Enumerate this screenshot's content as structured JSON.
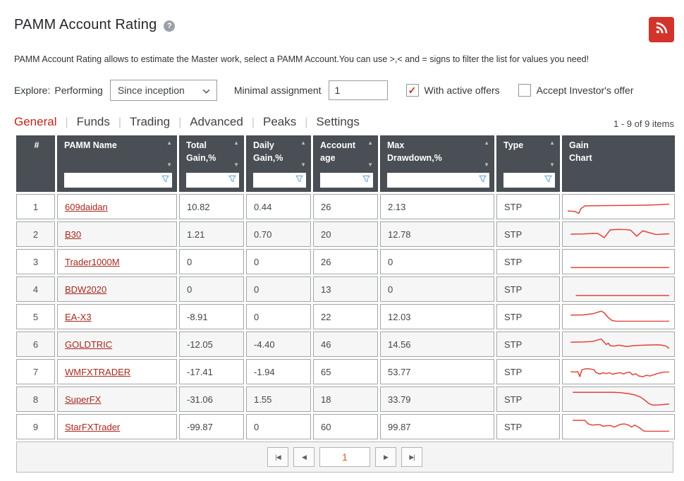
{
  "page": {
    "title": "PAMM Account Rating",
    "help_icon": "?",
    "description": "PAMM Account Rating allows to estimate the Master work, select a PAMM Account.You can use >,< and = signs to filter the list for values you need!",
    "items_count": "1 - 9 of 9 items"
  },
  "filters": {
    "explore_label": "Explore:",
    "explore_value": "Performing",
    "period_selected": "Since inception",
    "minimal_assignment_label": "Minimal assignment",
    "minimal_assignment_value": "1",
    "with_active_offers_label": "With active offers",
    "with_active_offers_checked": true,
    "accept_investors_offer_label": "Accept Investor's offer",
    "accept_investors_offer_checked": false
  },
  "tabs": [
    {
      "label": "General",
      "active": true
    },
    {
      "label": "Funds",
      "active": false
    },
    {
      "label": "Trading",
      "active": false
    },
    {
      "label": "Advanced",
      "active": false
    },
    {
      "label": "Peaks",
      "active": false
    },
    {
      "label": "Settings",
      "active": false
    }
  ],
  "table": {
    "columns": [
      {
        "label": "#",
        "sortable": false,
        "filterable": false
      },
      {
        "label": "PAMM Name",
        "sortable": true,
        "filterable": true
      },
      {
        "label": "Total\nGain,%",
        "sortable": true,
        "filterable": true
      },
      {
        "label": "Daily\nGain,%",
        "sortable": true,
        "filterable": true
      },
      {
        "label": "Account\nage",
        "sortable": true,
        "filterable": true
      },
      {
        "label": "Max\nDrawdown,%",
        "sortable": true,
        "filterable": true
      },
      {
        "label": "Type",
        "sortable": true,
        "filterable": true
      },
      {
        "label": "Gain\nChart",
        "sortable": false,
        "filterable": false
      }
    ],
    "rows": [
      {
        "num": "1",
        "name": "609daidan",
        "total_gain": "10.82",
        "daily_gain": "0.44",
        "account_age": "26",
        "max_drawdown": "2.13",
        "type": "STP",
        "spark": [
          [
            0,
            72
          ],
          [
            7,
            74
          ],
          [
            11,
            84
          ],
          [
            13,
            60
          ],
          [
            17,
            46
          ],
          [
            30,
            45
          ],
          [
            50,
            44
          ],
          [
            70,
            43
          ],
          [
            80,
            42
          ],
          [
            90,
            40
          ],
          [
            100,
            37
          ]
        ]
      },
      {
        "num": "2",
        "name": "B30",
        "total_gain": "1.21",
        "daily_gain": "0.70",
        "account_age": "20",
        "max_drawdown": "12.78",
        "type": "STP",
        "spark": [
          [
            3,
            50
          ],
          [
            15,
            49
          ],
          [
            25,
            46
          ],
          [
            30,
            47
          ],
          [
            36,
            68
          ],
          [
            42,
            28
          ],
          [
            50,
            26
          ],
          [
            58,
            27
          ],
          [
            62,
            30
          ],
          [
            68,
            60
          ],
          [
            74,
            33
          ],
          [
            80,
            42
          ],
          [
            87,
            52
          ],
          [
            93,
            50
          ],
          [
            100,
            48
          ]
        ]
      },
      {
        "num": "3",
        "name": "Trader1000M",
        "total_gain": "0",
        "daily_gain": "0",
        "account_age": "26",
        "max_drawdown": "0",
        "type": "STP",
        "spark": [
          [
            3,
            80
          ],
          [
            100,
            80
          ]
        ]
      },
      {
        "num": "4",
        "name": "BDW2020",
        "total_gain": "0",
        "daily_gain": "0",
        "account_age": "13",
        "max_drawdown": "0",
        "type": "STP",
        "spark": [
          [
            8,
            82
          ],
          [
            100,
            82
          ]
        ]
      },
      {
        "num": "5",
        "name": "EA-X3",
        "total_gain": "-8.91",
        "daily_gain": "0",
        "account_age": "22",
        "max_drawdown": "12.03",
        "type": "STP",
        "spark": [
          [
            3,
            42
          ],
          [
            15,
            41
          ],
          [
            25,
            35
          ],
          [
            33,
            22
          ],
          [
            36,
            30
          ],
          [
            40,
            55
          ],
          [
            44,
            70
          ],
          [
            48,
            73
          ],
          [
            100,
            73
          ]
        ]
      },
      {
        "num": "6",
        "name": "GOLDTRIC",
        "total_gain": "-12.05",
        "daily_gain": "-4.40",
        "account_age": "46",
        "max_drawdown": "14.56",
        "type": "STP",
        "spark": [
          [
            3,
            40
          ],
          [
            15,
            39
          ],
          [
            25,
            36
          ],
          [
            30,
            28
          ],
          [
            33,
            24
          ],
          [
            36,
            40
          ],
          [
            38,
            52
          ],
          [
            40,
            45
          ],
          [
            42,
            58
          ],
          [
            46,
            60
          ],
          [
            50,
            55
          ],
          [
            54,
            58
          ],
          [
            58,
            62
          ],
          [
            64,
            58
          ],
          [
            70,
            56
          ],
          [
            76,
            55
          ],
          [
            82,
            54
          ],
          [
            88,
            53
          ],
          [
            93,
            55
          ],
          [
            97,
            60
          ],
          [
            100,
            72
          ]
        ]
      },
      {
        "num": "7",
        "name": "WMFXTRADER",
        "total_gain": "-17.41",
        "daily_gain": "-1.94",
        "account_age": "65",
        "max_drawdown": "53.77",
        "type": "STP",
        "spark": [
          [
            3,
            50
          ],
          [
            7,
            52
          ],
          [
            10,
            50
          ],
          [
            12,
            75
          ],
          [
            14,
            40
          ],
          [
            18,
            35
          ],
          [
            22,
            36
          ],
          [
            26,
            40
          ],
          [
            28,
            55
          ],
          [
            32,
            62
          ],
          [
            35,
            55
          ],
          [
            38,
            60
          ],
          [
            41,
            55
          ],
          [
            44,
            63
          ],
          [
            48,
            58
          ],
          [
            52,
            55
          ],
          [
            55,
            62
          ],
          [
            58,
            55
          ],
          [
            61,
            52
          ],
          [
            64,
            66
          ],
          [
            67,
            60
          ],
          [
            70,
            72
          ],
          [
            74,
            75
          ],
          [
            78,
            68
          ],
          [
            81,
            72
          ],
          [
            85,
            65
          ],
          [
            88,
            60
          ],
          [
            92,
            55
          ],
          [
            95,
            52
          ],
          [
            100,
            52
          ]
        ]
      },
      {
        "num": "8",
        "name": "SuperFX",
        "total_gain": "-31.06",
        "daily_gain": "1.55",
        "account_age": "18",
        "max_drawdown": "33.79",
        "type": "STP",
        "spark": [
          [
            5,
            15
          ],
          [
            45,
            15
          ],
          [
            52,
            17
          ],
          [
            60,
            22
          ],
          [
            66,
            28
          ],
          [
            72,
            40
          ],
          [
            76,
            55
          ],
          [
            80,
            72
          ],
          [
            84,
            80
          ],
          [
            90,
            79
          ],
          [
            100,
            74
          ]
        ]
      },
      {
        "num": "9",
        "name": "StarFXTrader",
        "total_gain": "-99.87",
        "daily_gain": "0",
        "account_age": "60",
        "max_drawdown": "99.87",
        "type": "STP",
        "spark": [
          [
            5,
            18
          ],
          [
            17,
            18
          ],
          [
            20,
            35
          ],
          [
            24,
            42
          ],
          [
            28,
            40
          ],
          [
            32,
            40
          ],
          [
            35,
            48
          ],
          [
            38,
            45
          ],
          [
            42,
            44
          ],
          [
            46,
            52
          ],
          [
            49,
            45
          ],
          [
            52,
            38
          ],
          [
            56,
            36
          ],
          [
            60,
            42
          ],
          [
            63,
            52
          ],
          [
            66,
            42
          ],
          [
            69,
            50
          ],
          [
            72,
            60
          ],
          [
            75,
            72
          ],
          [
            78,
            73
          ],
          [
            100,
            73
          ]
        ]
      }
    ]
  },
  "pagination": {
    "first_icon": "|◀",
    "prev_icon": "◀",
    "page_value": "1",
    "next_icon": "▶",
    "last_icon": "▶|"
  },
  "colors": {
    "accent_red": "#c0251b",
    "link_red": "#a5281d",
    "header_bg": "#4a4f55",
    "spark_line": "#e0433c",
    "rss_red": "#d2342b",
    "funnel_blue": "#6ba6d6"
  }
}
